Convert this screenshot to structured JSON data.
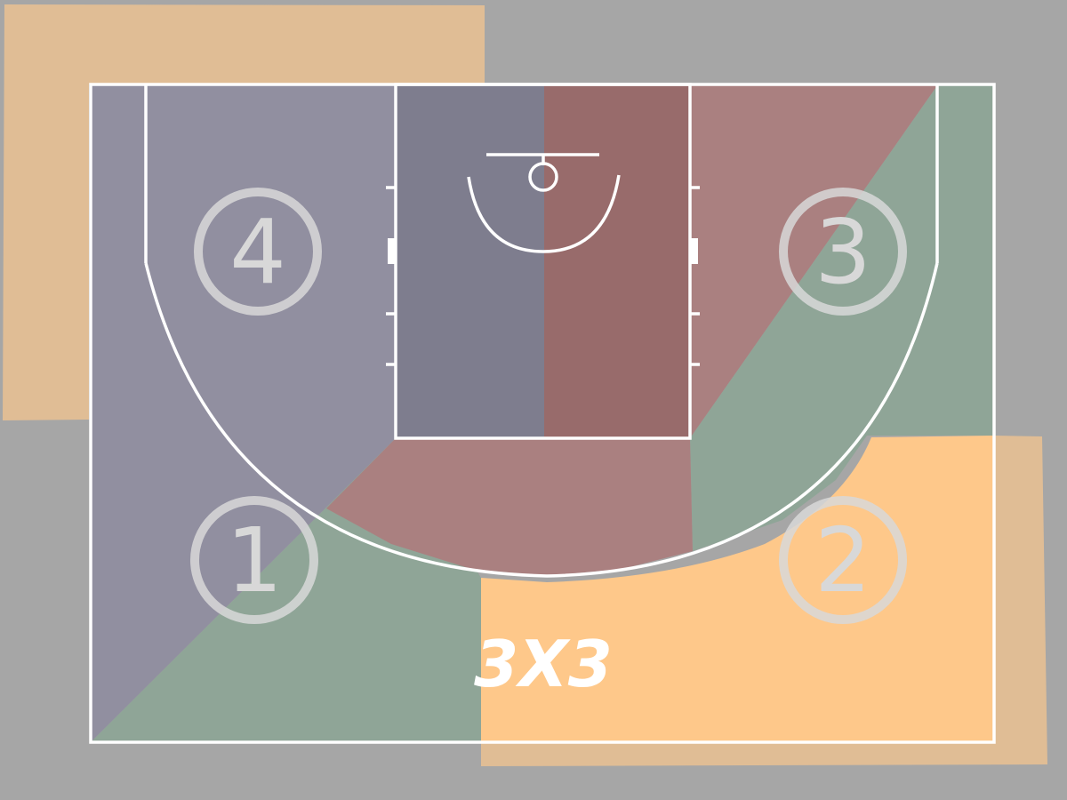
{
  "colors": {
    "background": "#a6a6a6",
    "zone_1": "#8fa597",
    "zone_2": "#fec88a",
    "zone_3": "#aa8080",
    "zone_4": "#918fa0",
    "paint_left": "#7e7d8e",
    "paint_right": "#986b6b",
    "offcourt": "#e0bd95",
    "lines": "#ffffff"
  },
  "zones": [
    {
      "id": "1",
      "label": "1"
    },
    {
      "id": "2",
      "label": "2"
    },
    {
      "id": "3",
      "label": "3"
    },
    {
      "id": "4",
      "label": "4"
    }
  ],
  "logo": {
    "text": "3X3"
  }
}
